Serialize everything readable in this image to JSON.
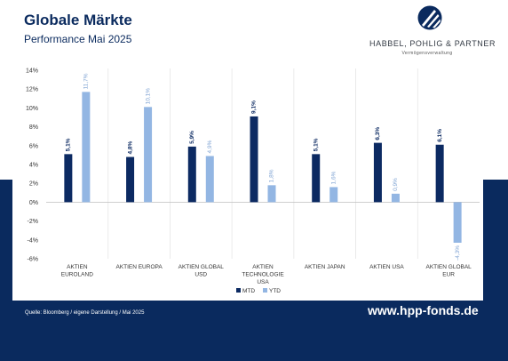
{
  "header": {
    "title": "Globale Märkte",
    "subtitle": "Performance Mai 2025"
  },
  "logo": {
    "name": "HABBEL, POHLIG & PARTNER",
    "tagline": "Vermögensverwaltung"
  },
  "footer": {
    "source": "Quelle: Bloomberg / eigene Darstellung / Mai 2025",
    "website": "www.hpp-fonds.de"
  },
  "colors": {
    "navy": "#0a2a5e",
    "mtd": "#0c2a62",
    "ytd": "#93b6e3"
  },
  "chart_data": {
    "type": "bar",
    "categories": [
      [
        "AKTIEN",
        "EUROLAND"
      ],
      [
        "AKTIEN EUROPA"
      ],
      [
        "AKTIEN GLOBAL",
        "USD"
      ],
      [
        "AKTIEN",
        "TECHNOLOGIE",
        "USA"
      ],
      [
        "AKTIEN JAPAN"
      ],
      [
        "AKTIEN USA"
      ],
      [
        "AKTIEN GLOBAL",
        "EUR"
      ]
    ],
    "series": [
      {
        "name": "MTD",
        "values": [
          5.1,
          4.8,
          5.9,
          9.1,
          5.1,
          6.3,
          6.1
        ],
        "labels": [
          "5,1%",
          "4,8%",
          "5,9%",
          "9,1%",
          "5,1%",
          "6,3%",
          "6,1%"
        ]
      },
      {
        "name": "YTD",
        "values": [
          11.7,
          10.1,
          4.9,
          1.8,
          1.6,
          0.9,
          -4.3
        ],
        "labels": [
          "11,7%",
          "10,1%",
          "4,9%",
          "1,8%",
          "1,6%",
          "0,9%",
          "-4,3%"
        ]
      }
    ],
    "yticks": [
      "14%",
      "12%",
      "10%",
      "8%",
      "6%",
      "4%",
      "2%",
      "0%",
      "-2%",
      "-4%",
      "-6%"
    ],
    "ylim": [
      -6,
      14
    ],
    "legend": "bottom-center",
    "grid": "vertical separators"
  }
}
